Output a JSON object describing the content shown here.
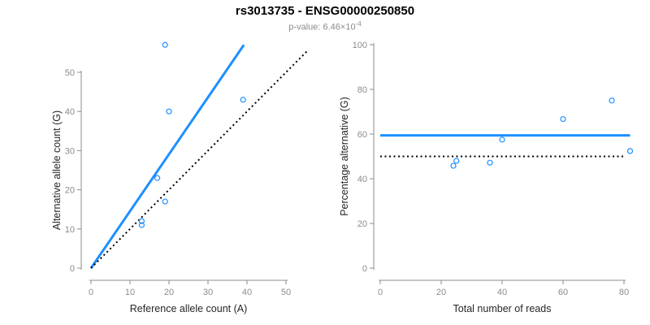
{
  "header": {
    "title": "rs3013735 - ENSG00000250850",
    "subtitle_prefix": "p-value: 6.46×10",
    "subtitle_exponent": "-4"
  },
  "colors": {
    "accent_blue": "#1E90FF",
    "line_black": "#000000",
    "axis_gray": "#8C8C8C",
    "label_dark": "#262626"
  },
  "chart_data": [
    {
      "type": "scatter",
      "name": "allele-count-scatter",
      "xlabel": "Reference allele count (A)",
      "ylabel": "Alternative allele count (G)",
      "xlim": [
        0,
        50
      ],
      "ylim": [
        0,
        50
      ],
      "xticks": [
        0,
        10,
        20,
        30,
        40,
        50
      ],
      "yticks": [
        0,
        10,
        20,
        30,
        40,
        50
      ],
      "grid": false,
      "legend": null,
      "points": {
        "x": [
          13,
          13,
          17,
          19,
          19,
          20,
          39
        ],
        "y": [
          11,
          12,
          23,
          17,
          57,
          40,
          43
        ]
      },
      "lines": [
        {
          "name": "fitted-allelic-ratio-line",
          "style": "solid",
          "color_key": "accent_blue",
          "width": 3,
          "x": [
            0,
            39.2
          ],
          "y": [
            0,
            57
          ]
        },
        {
          "name": "identity-line",
          "style": "dotted",
          "color_key": "line_black",
          "width": 2,
          "x": [
            0,
            55.4
          ],
          "y": [
            0,
            55.4
          ]
        }
      ]
    },
    {
      "type": "scatter",
      "name": "percentage-vs-reads-scatter",
      "xlabel": "Total number of reads",
      "ylabel": "Percentage alternative (G)",
      "xlim": [
        0,
        80
      ],
      "ylim": [
        0,
        100
      ],
      "xticks": [
        0,
        20,
        40,
        60,
        80
      ],
      "yticks": [
        0,
        20,
        40,
        60,
        80,
        100
      ],
      "grid": false,
      "legend": null,
      "points": {
        "x": [
          24,
          25,
          36,
          40,
          60,
          76,
          82
        ],
        "y": [
          45.8,
          48,
          47.2,
          57.5,
          66.7,
          75,
          52.4
        ]
      },
      "lines": [
        {
          "name": "mean-percentage-line",
          "style": "solid",
          "color_key": "accent_blue",
          "width": 3,
          "x": [
            0,
            82
          ],
          "y": [
            59.4,
            59.4
          ]
        },
        {
          "name": "fifty-percent-reference-line",
          "style": "dotted",
          "color_key": "line_black",
          "width": 2,
          "x": [
            0,
            80
          ],
          "y": [
            50,
            50
          ]
        }
      ]
    }
  ]
}
